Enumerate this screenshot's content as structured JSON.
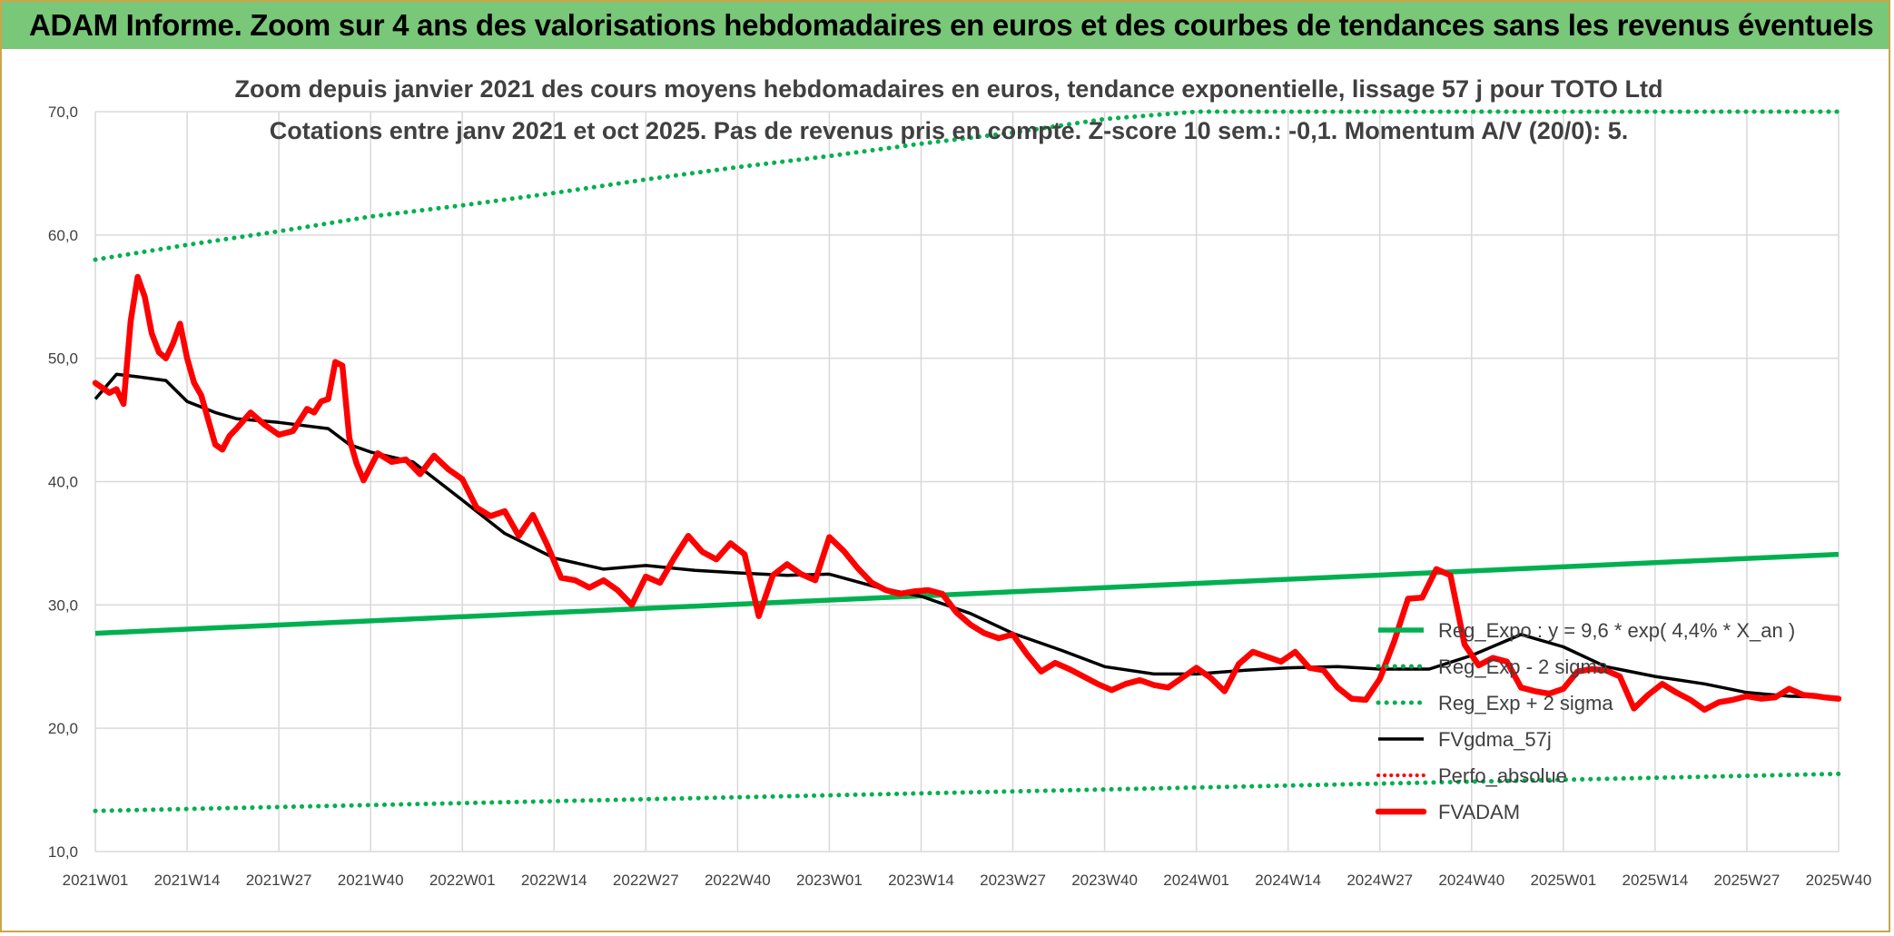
{
  "banner": {
    "title": "ADAM Informe. Zoom sur 4 ans des valorisations hebdomadaires en euros et des courbes de tendances sans les revenus éventuels"
  },
  "colors": {
    "banner_bg": "#79c778",
    "trend_green": "#00b050",
    "price_red": "#ff0000",
    "smooth_black": "#000000",
    "grid": "#d9d9d9",
    "frame": "#c9a64a"
  },
  "chart_data": {
    "type": "line",
    "title": "Zoom depuis janvier 2021 des cours moyens hebdomadaires en euros, tendance exponentielle, lissage 57 j pour TOTO Ltd",
    "subtitle": "Cotations entre janv 2021 et oct 2025. Pas de revenus pris en compte. Z-score 10 sem.: -0,1. Momentum A/V (20/0): 5.",
    "ylim": [
      10,
      70
    ],
    "yticks": [
      "10,0",
      "20,0",
      "30,0",
      "40,0",
      "50,0",
      "60,0",
      "70,0"
    ],
    "grid": true,
    "legend_position": "right",
    "x_tick_labels": [
      "2021W01",
      "2021W14",
      "2021W27",
      "2021W40",
      "2022W01",
      "2022W14",
      "2022W27",
      "2022W40",
      "2023W01",
      "2023W14",
      "2023W27",
      "2023W40",
      "2024W01",
      "2024W14",
      "2024W27",
      "2024W40",
      "2025W01",
      "2025W14",
      "2025W27",
      "2025W40"
    ],
    "series": [
      {
        "name": "Reg_Expo : y = 9,6 * exp( 4,4% *  X_an )",
        "style": "solid-green-thick",
        "x": [
          0,
          247
        ],
        "y": [
          27.7,
          34.1
        ]
      },
      {
        "name": "Reg_Exp - 2 sigma",
        "style": "dotted-green",
        "x": [
          0,
          247
        ],
        "y": [
          13.3,
          16.3
        ]
      },
      {
        "name": "Reg_Exp + 2 sigma",
        "style": "dotted-green",
        "x": [
          0,
          13,
          26,
          39,
          52,
          65,
          78,
          91,
          104,
          117,
          130,
          143,
          156,
          169,
          182,
          195,
          208,
          221,
          234,
          247
        ],
        "y": [
          58.0,
          59.2,
          60.3,
          61.5,
          62.4,
          63.4,
          64.5,
          65.5,
          66.4,
          67.4,
          68.3,
          69.4,
          70.0,
          70.0,
          70.0,
          70.0,
          70.0,
          70.0,
          70.0,
          70.0
        ]
      },
      {
        "name": "FVgdma_57j",
        "style": "solid-black",
        "x": [
          0,
          3,
          6,
          10,
          13,
          17,
          20,
          26,
          33,
          36,
          39,
          45,
          52,
          58,
          65,
          72,
          78,
          85,
          91,
          98,
          104,
          111,
          117,
          124,
          130,
          137,
          143,
          150,
          156,
          163,
          169,
          176,
          182,
          189,
          195,
          202,
          208,
          214,
          221,
          228,
          234,
          240,
          247
        ],
        "y": [
          46.7,
          48.7,
          48.5,
          48.2,
          46.5,
          45.6,
          45.1,
          44.8,
          44.3,
          43.0,
          42.4,
          41.6,
          38.5,
          35.8,
          33.8,
          32.9,
          33.2,
          32.8,
          32.6,
          32.4,
          32.5,
          31.4,
          30.7,
          29.3,
          27.7,
          26.3,
          25.0,
          24.4,
          24.4,
          24.7,
          24.9,
          25.0,
          24.8,
          24.8,
          25.9,
          27.6,
          26.6,
          25.0,
          24.2,
          23.6,
          22.9,
          22.6,
          22.5
        ]
      },
      {
        "name": "Perfo_absolue",
        "style": "dotted-red",
        "x": [],
        "y": []
      },
      {
        "name": "FVADAM",
        "style": "solid-red-thick",
        "x": [
          0,
          2,
          3,
          4,
          5,
          6,
          7,
          8,
          9,
          10,
          11,
          12,
          13,
          14,
          15,
          16,
          17,
          18,
          19,
          20,
          22,
          24,
          26,
          28,
          30,
          31,
          32,
          33,
          34,
          35,
          36,
          37,
          38,
          40,
          42,
          44,
          46,
          48,
          50,
          52,
          54,
          56,
          58,
          60,
          62,
          64,
          66,
          68,
          70,
          72,
          74,
          76,
          78,
          80,
          82,
          84,
          86,
          88,
          90,
          92,
          94,
          96,
          98,
          100,
          102,
          104,
          106,
          108,
          110,
          112,
          114,
          116,
          118,
          120,
          122,
          124,
          126,
          128,
          130,
          132,
          134,
          136,
          138,
          140,
          142,
          144,
          146,
          148,
          150,
          152,
          154,
          156,
          158,
          160,
          162,
          164,
          166,
          168,
          170,
          172,
          174,
          176,
          178,
          180,
          182,
          184,
          186,
          188,
          190,
          192,
          194,
          196,
          198,
          200,
          202,
          204,
          206,
          208,
          210,
          212,
          214,
          216,
          218,
          220,
          222,
          224,
          226,
          228,
          230,
          232,
          234,
          236,
          238,
          240,
          242,
          244,
          245,
          247
        ],
        "y": [
          48.0,
          47.2,
          47.5,
          46.3,
          53.0,
          56.6,
          55.0,
          52.0,
          50.5,
          50.0,
          51.2,
          52.8,
          50.0,
          48.0,
          47.0,
          45.0,
          43.0,
          42.6,
          43.7,
          44.3,
          45.6,
          44.6,
          43.8,
          44.1,
          45.9,
          45.6,
          46.5,
          46.7,
          49.7,
          49.4,
          43.5,
          41.5,
          40.1,
          42.3,
          41.6,
          41.8,
          40.6,
          42.1,
          41.0,
          40.2,
          37.9,
          37.2,
          37.6,
          35.6,
          37.3,
          34.9,
          32.2,
          32.0,
          31.4,
          32.0,
          31.2,
          30.0,
          32.3,
          31.8,
          33.8,
          35.6,
          34.3,
          33.7,
          35.0,
          34.1,
          29.1,
          32.4,
          33.3,
          32.5,
          32.0,
          35.5,
          34.4,
          33.0,
          31.8,
          31.2,
          30.9,
          31.1,
          31.2,
          30.9,
          29.4,
          28.4,
          27.7,
          27.3,
          27.6,
          26.0,
          24.6,
          25.3,
          24.8,
          24.2,
          23.6,
          23.1,
          23.6,
          23.9,
          23.5,
          23.3,
          24.1,
          24.9,
          24.1,
          23.0,
          25.2,
          26.2,
          25.8,
          25.4,
          26.2,
          24.9,
          24.7,
          23.3,
          22.4,
          22.3,
          24.0,
          27.0,
          30.5,
          30.6,
          32.9,
          32.4,
          26.8,
          25.1,
          25.7,
          25.4,
          23.3,
          23.0,
          22.8,
          23.2,
          24.6,
          24.8,
          24.7,
          24.2,
          21.6,
          22.7,
          23.6,
          22.9,
          22.3,
          21.5,
          22.1,
          22.3,
          22.6,
          22.4,
          22.5,
          23.2,
          22.7,
          22.6,
          22.5,
          22.4
        ]
      }
    ]
  }
}
